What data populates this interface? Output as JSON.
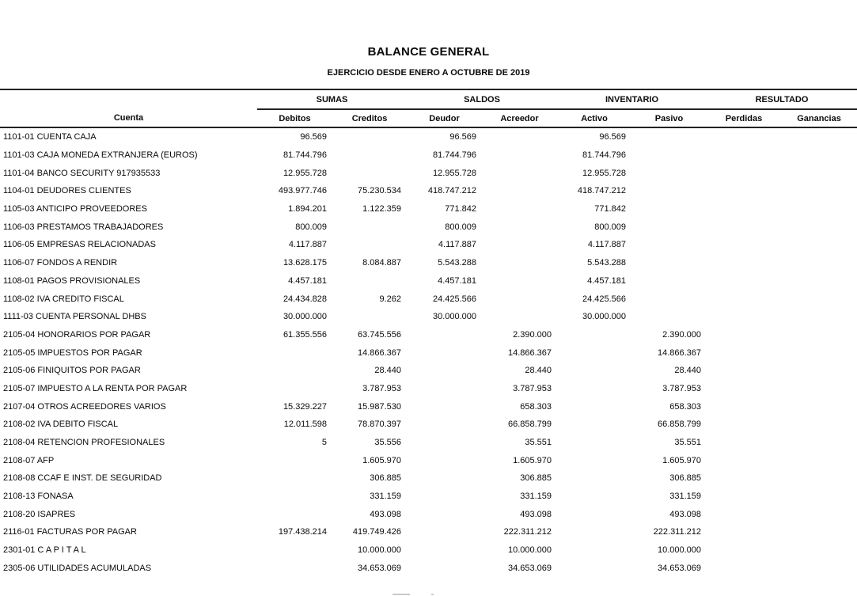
{
  "page": {
    "title": "BALANCE GENERAL",
    "subtitle": "EJERCICIO DESDE ENERO A OCTUBRE DE 2019"
  },
  "table": {
    "account_header": "Cuenta",
    "groups": [
      {
        "label": "SUMAS",
        "columns": [
          "Debitos",
          "Creditos"
        ]
      },
      {
        "label": "SALDOS",
        "columns": [
          "Deudor",
          "Acreedor"
        ]
      },
      {
        "label": "INVENTARIO",
        "columns": [
          "Activo",
          "Pasivo"
        ]
      },
      {
        "label": "RESULTADO",
        "columns": [
          "Perdidas",
          "Ganancias"
        ]
      }
    ],
    "rows": [
      {
        "cuenta": "1101-01 CUENTA CAJA",
        "values": [
          "96.569",
          "",
          "96.569",
          "",
          "96.569",
          "",
          "",
          ""
        ]
      },
      {
        "cuenta": "1101-03 CAJA MONEDA EXTRANJERA (EUROS)",
        "values": [
          "81.744.796",
          "",
          "81.744.796",
          "",
          "81.744.796",
          "",
          "",
          ""
        ]
      },
      {
        "cuenta": "1101-04 BANCO SECURITY 917935533",
        "values": [
          "12.955.728",
          "",
          "12.955.728",
          "",
          "12.955.728",
          "",
          "",
          ""
        ]
      },
      {
        "cuenta": "1104-01 DEUDORES CLIENTES",
        "values": [
          "493.977.746",
          "75.230.534",
          "418.747.212",
          "",
          "418.747.212",
          "",
          "",
          ""
        ]
      },
      {
        "cuenta": "1105-03 ANTICIPO PROVEEDORES",
        "values": [
          "1.894.201",
          "1.122.359",
          "771.842",
          "",
          "771.842",
          "",
          "",
          ""
        ]
      },
      {
        "cuenta": "1106-03 PRESTAMOS TRABAJADORES",
        "values": [
          "800.009",
          "",
          "800.009",
          "",
          "800.009",
          "",
          "",
          ""
        ]
      },
      {
        "cuenta": "1106-05 EMPRESAS RELACIONADAS",
        "values": [
          "4.117.887",
          "",
          "4.117.887",
          "",
          "4.117.887",
          "",
          "",
          ""
        ]
      },
      {
        "cuenta": "1106-07 FONDOS A RENDIR",
        "values": [
          "13.628.175",
          "8.084.887",
          "5.543.288",
          "",
          "5.543.288",
          "",
          "",
          ""
        ]
      },
      {
        "cuenta": "1108-01 PAGOS PROVISIONALES",
        "values": [
          "4.457.181",
          "",
          "4.457.181",
          "",
          "4.457.181",
          "",
          "",
          ""
        ]
      },
      {
        "cuenta": "1108-02 IVA CREDITO FISCAL",
        "values": [
          "24.434.828",
          "9.262",
          "24.425.566",
          "",
          "24.425.566",
          "",
          "",
          ""
        ]
      },
      {
        "cuenta": "1111-03 CUENTA PERSONAL DHBS",
        "values": [
          "30.000.000",
          "",
          "30.000.000",
          "",
          "30.000.000",
          "",
          "",
          ""
        ]
      },
      {
        "cuenta": "2105-04 HONORARIOS POR PAGAR",
        "values": [
          "61.355.556",
          "63.745.556",
          "",
          "2.390.000",
          "",
          "2.390.000",
          "",
          ""
        ]
      },
      {
        "cuenta": "2105-05 IMPUESTOS POR PAGAR",
        "values": [
          "",
          "14.866.367",
          "",
          "14.866.367",
          "",
          "14.866.367",
          "",
          ""
        ]
      },
      {
        "cuenta": "2105-06 FINIQUITOS POR PAGAR",
        "values": [
          "",
          "28.440",
          "",
          "28.440",
          "",
          "28.440",
          "",
          ""
        ]
      },
      {
        "cuenta": "2105-07 IMPUESTO A LA RENTA POR PAGAR",
        "values": [
          "",
          "3.787.953",
          "",
          "3.787.953",
          "",
          "3.787.953",
          "",
          ""
        ]
      },
      {
        "cuenta": "2107-04 OTROS ACREEDORES VARIOS",
        "values": [
          "15.329.227",
          "15.987.530",
          "",
          "658.303",
          "",
          "658.303",
          "",
          ""
        ]
      },
      {
        "cuenta": "2108-02 IVA DEBITO FISCAL",
        "values": [
          "12.011.598",
          "78.870.397",
          "",
          "66.858.799",
          "",
          "66.858.799",
          "",
          ""
        ]
      },
      {
        "cuenta": "2108-04 RETENCION PROFESIONALES",
        "values": [
          "5",
          "35.556",
          "",
          "35.551",
          "",
          "35.551",
          "",
          ""
        ]
      },
      {
        "cuenta": "2108-07 AFP",
        "values": [
          "",
          "1.605.970",
          "",
          "1.605.970",
          "",
          "1.605.970",
          "",
          ""
        ]
      },
      {
        "cuenta": "2108-08 CCAF E INST. DE SEGURIDAD",
        "values": [
          "",
          "306.885",
          "",
          "306.885",
          "",
          "306.885",
          "",
          ""
        ]
      },
      {
        "cuenta": "2108-13 FONASA",
        "values": [
          "",
          "331.159",
          "",
          "331.159",
          "",
          "331.159",
          "",
          ""
        ]
      },
      {
        "cuenta": "2108-20 ISAPRES",
        "values": [
          "",
          "493.098",
          "",
          "493.098",
          "",
          "493.098",
          "",
          ""
        ]
      },
      {
        "cuenta": "2116-01 FACTURAS POR PAGAR",
        "values": [
          "197.438.214",
          "419.749.426",
          "",
          "222.311.212",
          "",
          "222.311.212",
          "",
          ""
        ]
      },
      {
        "cuenta": "2301-01 C A P I T A L",
        "values": [
          "",
          "10.000.000",
          "",
          "10.000.000",
          "",
          "10.000.000",
          "",
          ""
        ]
      },
      {
        "cuenta": "2305-06 UTILIDADES ACUMULADAS",
        "values": [
          "",
          "34.653.069",
          "",
          "34.653.069",
          "",
          "34.653.069",
          "",
          ""
        ]
      }
    ]
  },
  "colors": {
    "text": "#0a0a0a",
    "rule": "#222222",
    "background": "#ffffff"
  }
}
